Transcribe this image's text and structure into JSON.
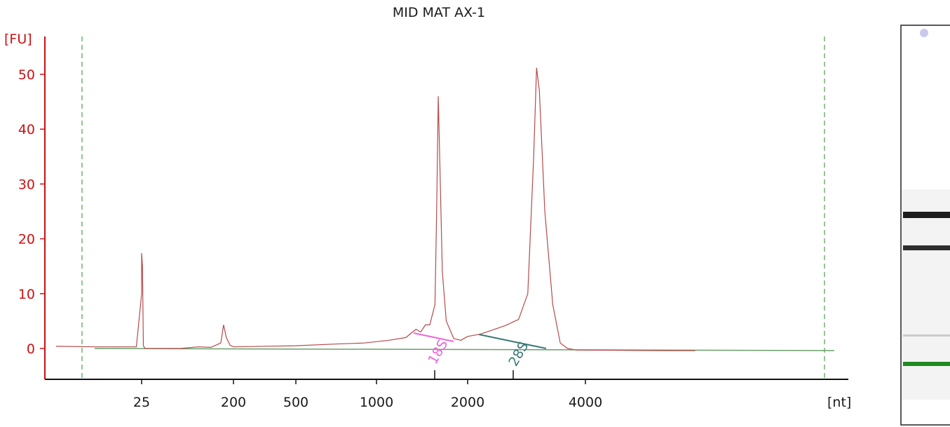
{
  "chart_data": {
    "type": "line",
    "title": "MID MAT AX-1",
    "ylabel": "[FU]",
    "xlabel": "[nt]",
    "ylim": [
      -5.6,
      57
    ],
    "y_ticks": [
      0,
      10,
      20,
      30,
      40,
      50
    ],
    "x_ticks": [
      "25",
      "200",
      "500",
      "1000",
      "2000",
      "4000"
    ],
    "grid": false,
    "x_scale": "nonlinear",
    "series": [
      {
        "color": "#b54a4a",
        "points": [
          [
            "18",
            0.4
          ],
          [
            "21",
            0.3
          ],
          [
            "24.5",
            0.3
          ],
          [
            "25",
            10
          ],
          [
            "25",
            17.4
          ],
          [
            "25.5",
            15
          ],
          [
            "26",
            0.5
          ],
          [
            "27",
            0.0
          ],
          [
            "60",
            0.0
          ],
          [
            "90",
            0.3
          ],
          [
            "120",
            0.2
          ],
          [
            "150",
            1.0
          ],
          [
            "160",
            4.3
          ],
          [
            "170",
            2.0
          ],
          [
            "185",
            0.6
          ],
          [
            "200",
            0.3
          ],
          [
            "500",
            0.5
          ],
          [
            "700",
            0.8
          ],
          [
            "900",
            1.0
          ],
          [
            "1100",
            1.5
          ],
          [
            "1250",
            2.0
          ],
          [
            "1350",
            3.5
          ],
          [
            "1400",
            3.0
          ],
          [
            "1450",
            4.3
          ],
          [
            "1500",
            4.3
          ],
          [
            "1560",
            8.0
          ],
          [
            "1580",
            25.0
          ],
          [
            "1600",
            46.0
          ],
          [
            "1620",
            33.0
          ],
          [
            "1650",
            14.0
          ],
          [
            "1700",
            5.0
          ],
          [
            "1800",
            1.8
          ],
          [
            "1900",
            1.5
          ],
          [
            "2000",
            2.2
          ],
          [
            "2150",
            2.6
          ],
          [
            "2300",
            3.3
          ],
          [
            "2500",
            4.2
          ],
          [
            "2700",
            5.3
          ],
          [
            "2850",
            10.0
          ],
          [
            "2950",
            35.0
          ],
          [
            "3000",
            51.2
          ],
          [
            "3050",
            47.0
          ],
          [
            "3150",
            25.0
          ],
          [
            "3300",
            8.0
          ],
          [
            "3450",
            1.0
          ],
          [
            "3600",
            0.0
          ],
          [
            "3800",
            -0.3
          ],
          [
            "4000",
            -0.3
          ],
          [
            "5000",
            -0.4
          ],
          [
            "5500",
            -0.4
          ]
        ]
      }
    ],
    "baseline_color": "#6aa06a",
    "markers": [
      {
        "label": "18S",
        "color": "#ee66dd",
        "x": "1600"
      },
      {
        "label": "28S",
        "color": "#3a7a78",
        "x": "2900"
      }
    ],
    "gel_lane": {
      "bands": [
        {
          "position": "upper",
          "color": "#111111"
        },
        {
          "position": "middle",
          "color": "#222222"
        },
        {
          "position": "marker",
          "color": "#1f8a1f"
        }
      ]
    }
  }
}
